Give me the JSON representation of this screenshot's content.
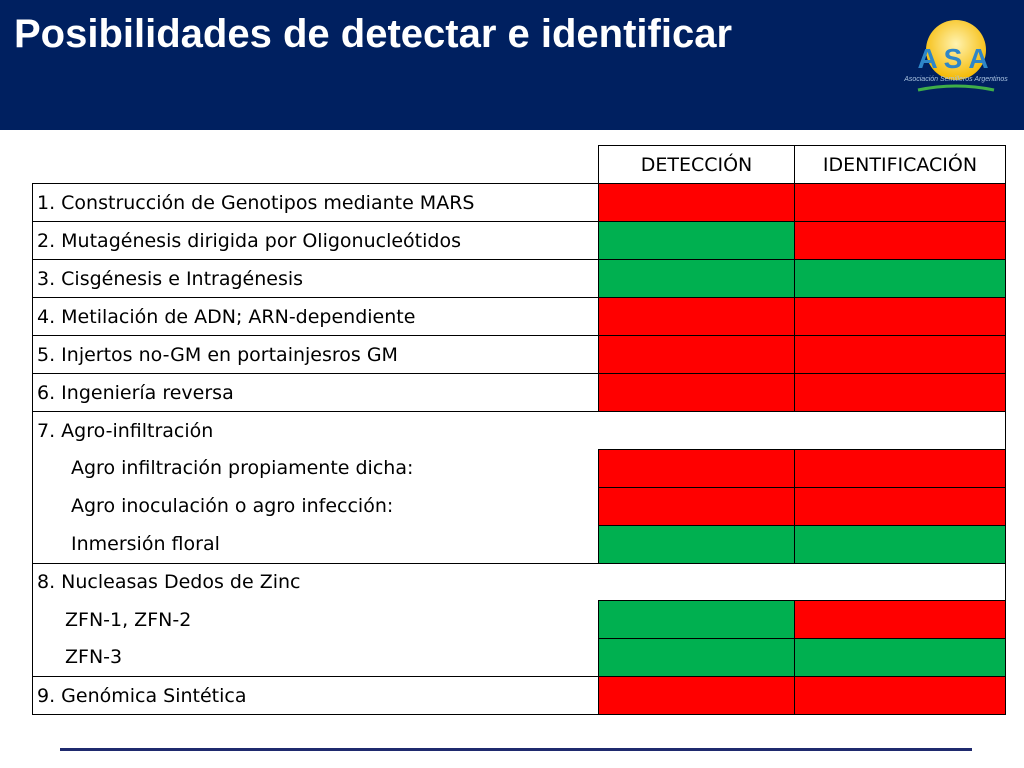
{
  "slide": {
    "title": "Posibilidades de detectar e identificar",
    "logo_text": "ASA",
    "logo_subtitle": "Asociación Semilleros Argentinos"
  },
  "colors": {
    "header_bg": "#002060",
    "positive": "#00b050",
    "negative": "#ff0000"
  },
  "table": {
    "columns": [
      "DETECCIÓN",
      "IDENTIFICACIÓN"
    ],
    "rows": [
      {
        "label": "1. Construcción de Genotipos mediante MARS",
        "detection": "red",
        "identification": "red"
      },
      {
        "label": "2. Mutagénesis dirigida por Oligonucleótidos",
        "detection": "green",
        "identification": "red"
      },
      {
        "label": "3. Cisgénesis e Intragénesis",
        "detection": "green",
        "identification": "green"
      },
      {
        "label": "4. Metilación de ADN; ARN-dependiente",
        "detection": "red",
        "identification": "red"
      },
      {
        "label": "5. Injertos no-GM en portainjesros GM",
        "detection": "red",
        "identification": "red"
      },
      {
        "label": "6. Ingeniería reversa",
        "detection": "red",
        "identification": "red"
      },
      {
        "label": "7. Agro-infiltración"
      },
      {
        "label": "Agro infiltración propiamente dicha:",
        "detection": "red",
        "identification": "red"
      },
      {
        "label": "Agro inoculación o agro infección:",
        "detection": "red",
        "identification": "red"
      },
      {
        "label": "Inmersión floral",
        "detection": "green",
        "identification": "green"
      },
      {
        "label": "8. Nucleasas Dedos de Zinc"
      },
      {
        "label": "ZFN-1, ZFN-2",
        "detection": "green",
        "identification": "red"
      },
      {
        "label": "ZFN-3",
        "detection": "green",
        "identification": "green"
      },
      {
        "label": "9. Genómica Sintética",
        "detection": "red",
        "identification": "red"
      }
    ]
  }
}
